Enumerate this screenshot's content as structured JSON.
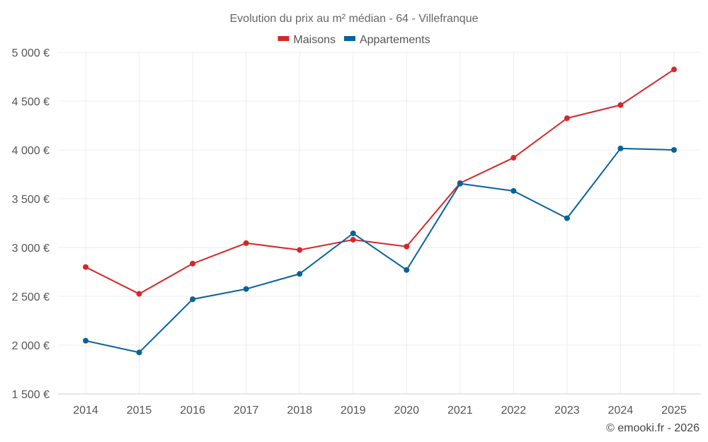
{
  "chart_data": {
    "type": "line",
    "title": "Evolution du prix au m² médian - 64 - Villefranque",
    "categories": [
      "2014",
      "2015",
      "2016",
      "2017",
      "2018",
      "2019",
      "2020",
      "2021",
      "2022",
      "2023",
      "2024",
      "2025"
    ],
    "series": [
      {
        "name": "Maisons",
        "color": "#d62728",
        "values": [
          2800,
          2525,
          2835,
          3045,
          2975,
          3080,
          3010,
          3660,
          3920,
          4325,
          4460,
          4825
        ]
      },
      {
        "name": "Appartements",
        "color": "#08629b",
        "values": [
          2045,
          1925,
          2470,
          2575,
          2730,
          3145,
          2770,
          3655,
          3580,
          3300,
          4015,
          4000
        ]
      }
    ],
    "ylim": [
      1500,
      5000
    ],
    "yticks": [
      {
        "value": 5000,
        "label": "5 000 €"
      },
      {
        "value": 4500,
        "label": "4 500 €"
      },
      {
        "value": 4000,
        "label": "4 000 €"
      },
      {
        "value": 3500,
        "label": "3 500 €"
      },
      {
        "value": 3000,
        "label": "3 000 €"
      },
      {
        "value": 2500,
        "label": "2 500 €"
      },
      {
        "value": 2000,
        "label": "2 000 €"
      },
      {
        "value": 1500,
        "label": "1 500 €"
      }
    ],
    "grid": true,
    "legend": "top-center",
    "xlabel": "",
    "ylabel": ""
  },
  "credit": "© emooki.fr - 2026"
}
